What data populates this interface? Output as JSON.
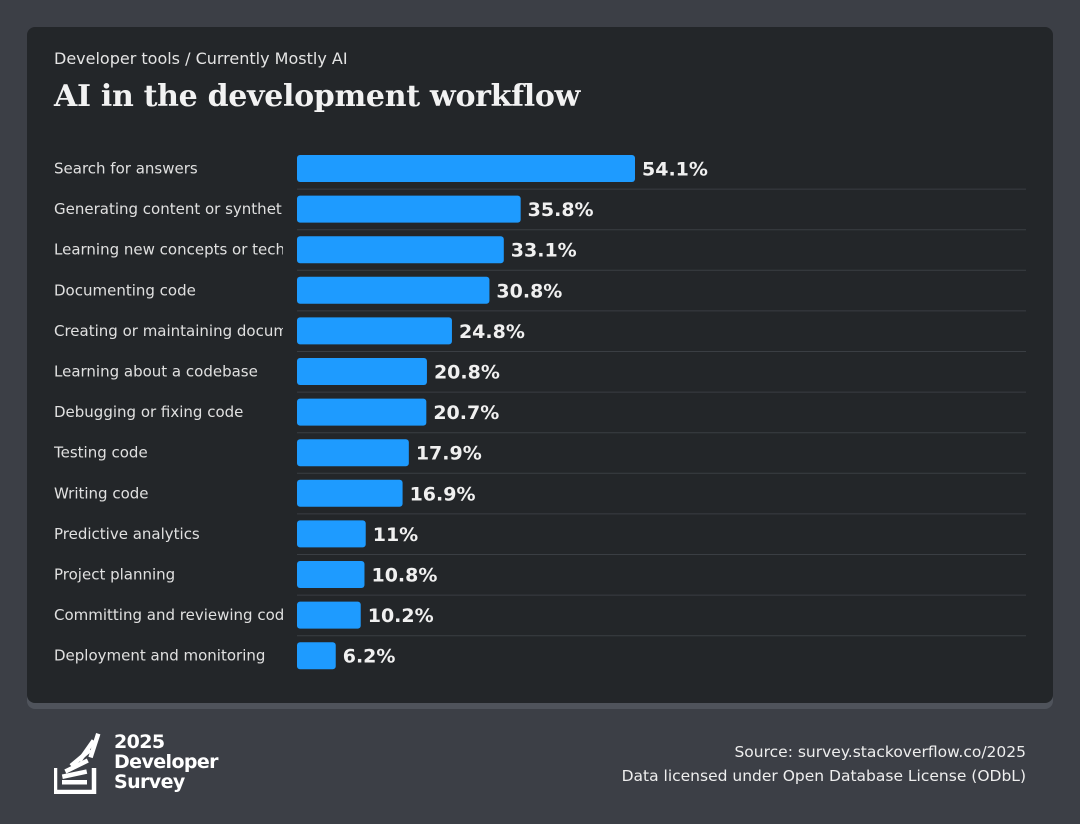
{
  "breadcrumb": "Developer tools / Currently Mostly AI",
  "title": "AI in the development workflow",
  "chart_data": {
    "type": "bar",
    "orientation": "horizontal",
    "categories": [
      "Search for answers",
      "Generating content or synthetic data",
      "Learning new concepts or technologies",
      "Documenting code",
      "Creating or maintaining documentation",
      "Learning about a codebase",
      "Debugging or fixing code",
      "Testing code",
      "Writing code",
      "Predictive analytics",
      "Project planning",
      "Committing and reviewing code",
      "Deployment and monitoring"
    ],
    "values": [
      54.1,
      35.8,
      33.1,
      30.8,
      24.8,
      20.8,
      20.7,
      17.9,
      16.9,
      11,
      10.8,
      10.2,
      6.2
    ],
    "value_labels": [
      "54.1%",
      "35.8%",
      "33.1%",
      "30.8%",
      "24.8%",
      "20.8%",
      "20.7%",
      "17.9%",
      "16.9%",
      "11%",
      "10.8%",
      "10.2%",
      "6.2%"
    ],
    "bar_color": "#1e9bff",
    "grid": false
  },
  "logo": {
    "year": "2025",
    "line1": "Developer",
    "line2": "Survey",
    "icon": "stack-overflow-logo-icon"
  },
  "source": {
    "line1": "Source: survey.stackoverflow.co/2025",
    "line2": "Data licensed under Open Database License (ODbL)"
  },
  "colors": {
    "background": "#3c3f46",
    "card": "#232629",
    "accent": "#1e9bff"
  }
}
